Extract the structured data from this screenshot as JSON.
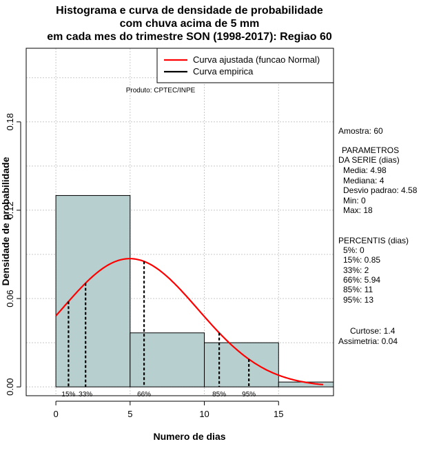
{
  "title_lines": [
    "Histograma e curva de densidade de probabilidade",
    "com chuva acima de 5 mm",
    "em cada mes do trimestre SON (1998-2017): Regiao 60"
  ],
  "product_label": "Produto: CPTEC/INPE",
  "chart_data": {
    "type": "bar",
    "xlabel": "Numero de dias",
    "ylabel": "Densidade de probabilidade",
    "xlim": [
      -2,
      18.7
    ],
    "ylim": [
      -0.006,
      0.23
    ],
    "x_ticks": [
      0,
      5,
      10,
      15
    ],
    "y_ticks": [
      0.0,
      0.06,
      0.12,
      0.18
    ],
    "y_tick_labels": [
      "0.00",
      "0.06",
      "0.12",
      "0.18"
    ],
    "grid": true,
    "bins": [
      {
        "from": 0,
        "to": 5,
        "density": 0.13
      },
      {
        "from": 5,
        "to": 10,
        "density": 0.0367
      },
      {
        "from": 10,
        "to": 15,
        "density": 0.03
      },
      {
        "from": 15,
        "to": 20,
        "density": 0.0033
      }
    ],
    "fitted_curve": {
      "name": "Curva ajustada (funcao Normal)",
      "color": "#ff0000",
      "mean": 4.98,
      "sd": 4.58,
      "x_from": 0,
      "x_to": 18
    },
    "empirical_curve": {
      "name": "Curva empirica",
      "color": "#000000"
    },
    "percentile_lines": [
      {
        "label": "15%",
        "x": 0.85
      },
      {
        "label": "33%",
        "x": 2
      },
      {
        "label": "66%",
        "x": 5.94
      },
      {
        "label": "85%",
        "x": 11
      },
      {
        "label": "95%",
        "x": 13
      }
    ],
    "legend": {
      "position": "top-right",
      "entries": [
        "Curva ajustada (funcao Normal)",
        "Curva empirica"
      ]
    },
    "bar_color": "#b7cfcf"
  },
  "stats_panel": {
    "sample": "Amostra: 60",
    "params_header_1": "PARAMETROS",
    "params_header_2": "DA SERIE (dias)",
    "mean": "Media: 4.98",
    "median": "Mediana: 4",
    "sd": "Desvio padrao: 4.58",
    "min": "Min: 0",
    "max": "Max: 18",
    "percentiles_header": "PERCENTIS (dias)",
    "p5": "5%: 0",
    "p15": "15%: 0.85",
    "p33": "33%: 2",
    "p66": "66%: 5.94",
    "p85": "85%: 11",
    "p95": "95%: 13",
    "kurtosis": "Curtose: 1.4",
    "skewness": "Assimetria: 0.04"
  }
}
